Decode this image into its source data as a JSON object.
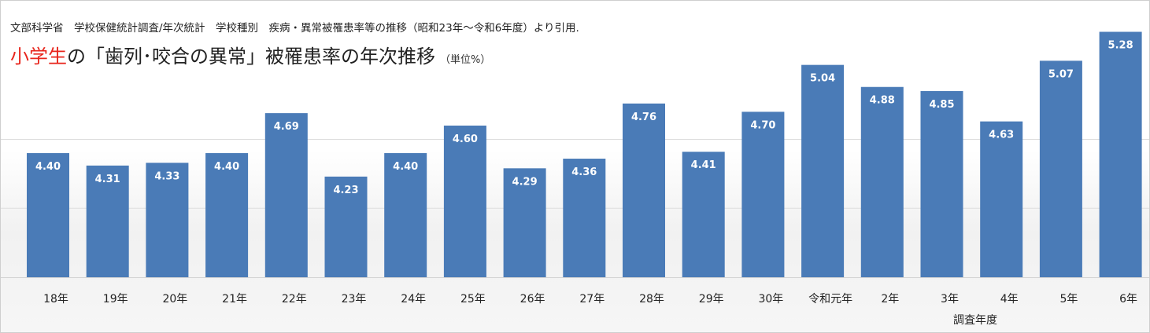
{
  "source_note": "文部科学省　学校保健統計調査/年次統計　学校種別　疾病・異常被罹患率等の推移（昭和23年～令和6年度）より引用.",
  "title": {
    "highlight": "小学生",
    "main": "の「歯列･咬合の異常」被罹患率の年次推移",
    "unit": "（単位%）"
  },
  "colors": {
    "bar": "#4a7bb7",
    "highlight": "#e8251c"
  },
  "chart_data": {
    "type": "bar",
    "title": "小学生の「歯列･咬合の異常」被罹患率の年次推移",
    "categories": [
      "18年",
      "19年",
      "20年",
      "21年",
      "22年",
      "23年",
      "24年",
      "25年",
      "26年",
      "27年",
      "28年",
      "29年",
      "30年",
      "令和元年",
      "2年",
      "3年",
      "4年",
      "5年",
      "6年"
    ],
    "values": [
      4.4,
      4.31,
      4.33,
      4.4,
      4.69,
      4.23,
      4.4,
      4.6,
      4.29,
      4.36,
      4.76,
      4.41,
      4.7,
      5.04,
      4.88,
      4.85,
      4.63,
      5.07,
      5.28
    ],
    "labels": [
      "4.40",
      "4.31",
      "4.33",
      "4.40",
      "4.69",
      "4.23",
      "4.40",
      "4.60",
      "4.29",
      "4.36",
      "4.76",
      "4.41",
      "4.70",
      "5.04",
      "4.88",
      "4.85",
      "4.63",
      "5.07",
      "5.28"
    ],
    "xlabel": "調査年度",
    "ylabel": "",
    "ylim": [
      3.5,
      5.3
    ],
    "gridlines": [
      4.0,
      4.5
    ],
    "grid": true,
    "legend": "none"
  }
}
